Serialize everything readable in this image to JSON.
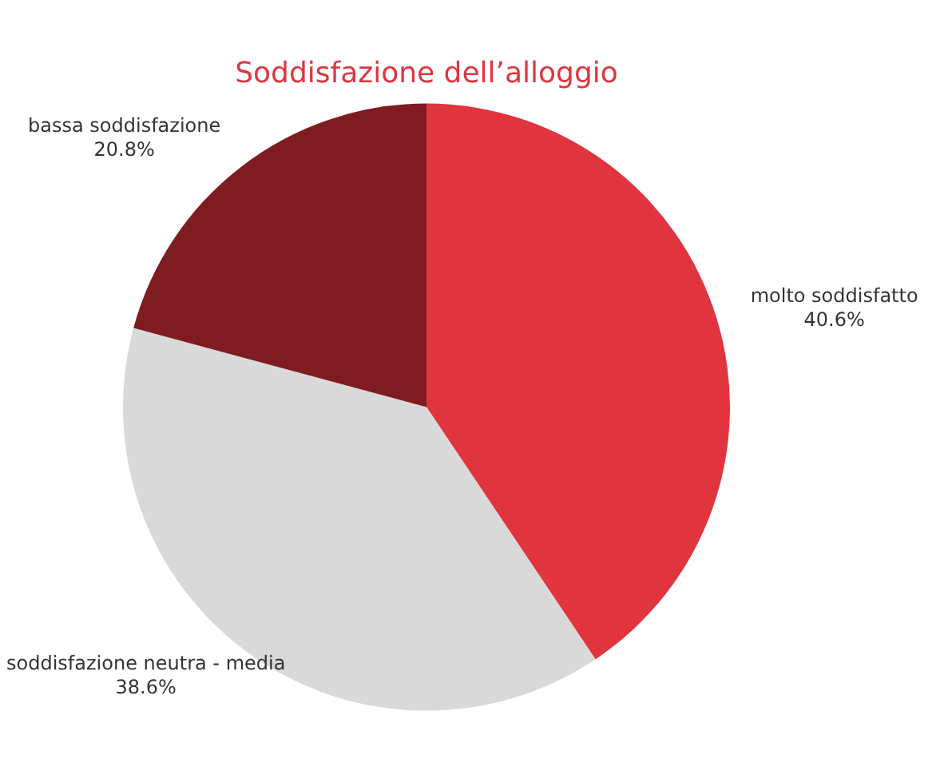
{
  "chart_data": {
    "type": "pie",
    "title": "Soddisfazione dell’alloggio",
    "categories": [
      "molto soddisfatto",
      "soddisfazione neutra - media",
      "bassa soddisfazione"
    ],
    "values": [
      40.6,
      38.6,
      20.8
    ],
    "colors": [
      "#e0353f",
      "#d9d9d9",
      "#7e1c22"
    ],
    "value_labels": [
      "40.6%",
      "38.6%",
      "20.8%"
    ],
    "legend": false
  }
}
